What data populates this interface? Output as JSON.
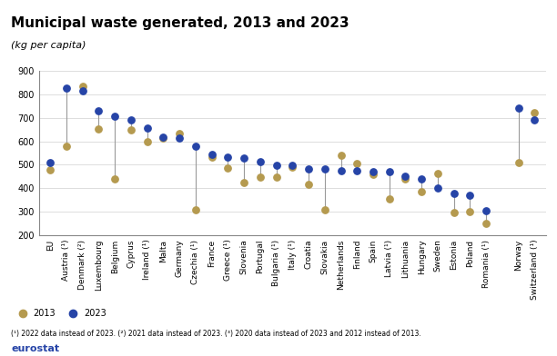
{
  "chart_data": {
    "type": "dot",
    "title": "Municipal waste generated, 2013 and 2023",
    "subtitle": "(kg per capita)",
    "footnote": "(¹) 2022 data instead of 2023. (²) 2021 data instead of 2023. (³) 2020 data instead of 2023 and 2012 instead of 2013.",
    "source": "eurostat",
    "categories": [
      "EU",
      "Austria (¹)",
      "Denmark (²)",
      "Luxembourg",
      "Belgium",
      "Cyprus",
      "Ireland (¹)",
      "Malta",
      "Germany",
      "Czechia (¹)",
      "France",
      "Greece (¹)",
      "Slovenia",
      "Portugal",
      "Bulgaria (¹)",
      "Italy (¹)",
      "Croatia",
      "Slovakia",
      "Netherlands",
      "Finland",
      "Spain",
      "Latvia (¹)",
      "Lithuania",
      "Hungary",
      "Sweden",
      "Estonia",
      "Poland",
      "Romania (¹)",
      null,
      "Norway",
      "Switzerland (¹)"
    ],
    "series": [
      {
        "name": "2013",
        "color": "#b59a4f",
        "marker": "circle",
        "values": [
          477,
          578,
          835,
          653,
          439,
          651,
          598,
          613,
          632,
          307,
          531,
          486,
          423,
          449,
          449,
          491,
          415,
          307,
          539,
          505,
          460,
          355,
          438,
          385,
          464,
          295,
          299,
          251,
          null,
          509,
          722
        ]
      },
      {
        "name": "2023",
        "color": "#2644a7",
        "marker": "circle",
        "values": [
          511,
          827,
          815,
          729,
          707,
          692,
          658,
          620,
          613,
          580,
          546,
          531,
          527,
          512,
          497,
          496,
          482,
          482,
          475,
          475,
          471,
          471,
          453,
          438,
          400,
          378,
          370,
          303,
          null,
          744,
          692
        ]
      }
    ],
    "ylim": [
      200,
      900
    ],
    "yticks": [
      200,
      300,
      400,
      500,
      600,
      700,
      800,
      900
    ],
    "grid": true,
    "legend": "lower left",
    "tick_labels": true
  }
}
